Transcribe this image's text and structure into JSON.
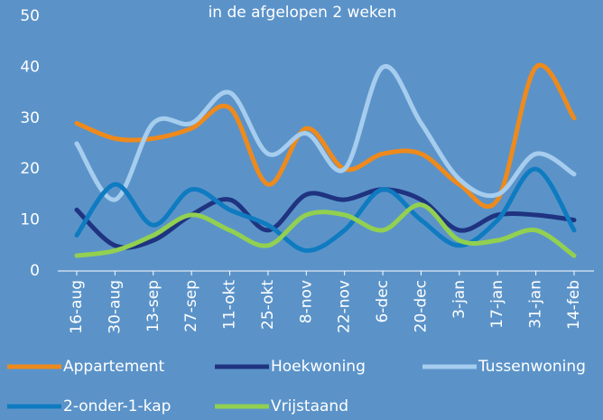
{
  "chart_data": {
    "type": "line",
    "title": "in de afgelopen 2 weken",
    "categories": [
      "16-aug",
      "30-aug",
      "13-sep",
      "27-sep",
      "11-okt",
      "25-okt",
      "8-nov",
      "22-nov",
      "6-dec",
      "20-dec",
      "3-jan",
      "17-jan",
      "31-jan",
      "14-feb"
    ],
    "series": [
      {
        "name": "Appartement",
        "color": "#ee8a1c",
        "values": [
          29,
          26,
          26,
          28,
          32,
          17,
          28,
          20,
          23,
          23,
          17,
          14,
          40,
          30
        ]
      },
      {
        "name": "Hoekwoning",
        "color": "#1f3380",
        "values": [
          12,
          5,
          6,
          11,
          14,
          8,
          15,
          14,
          16,
          14,
          8,
          11,
          11,
          10
        ]
      },
      {
        "name": "Tussenwoning",
        "color": "#a6cdee",
        "values": [
          25,
          14,
          29,
          29,
          35,
          23,
          27,
          20,
          40,
          29,
          18,
          15,
          23,
          19
        ]
      },
      {
        "name": "2-onder-1-kap",
        "color": "#0f7bc0",
        "values": [
          7,
          17,
          9,
          16,
          12,
          9,
          4,
          8,
          16,
          10,
          5,
          10,
          20,
          8
        ]
      },
      {
        "name": "Vrijstaand",
        "color": "#92d050",
        "values": [
          3,
          4,
          7,
          11,
          8,
          5,
          11,
          11,
          8,
          13,
          6,
          6,
          8,
          3
        ]
      }
    ],
    "ylim": [
      0,
      50
    ],
    "yticks": [
      0,
      10,
      20,
      30,
      40,
      50
    ],
    "smooth": true
  }
}
